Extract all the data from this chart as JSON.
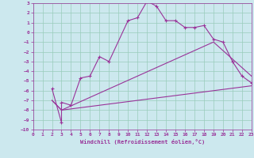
{
  "xlabel": "Windchill (Refroidissement éolien,°C)",
  "bg_color": "#cce8ee",
  "grid_color": "#99ccbb",
  "line_color": "#993399",
  "xmin": 0,
  "xmax": 23,
  "ymin": -10,
  "ymax": 3,
  "curve1_x": [
    2,
    3,
    3,
    4,
    5,
    6,
    7,
    8,
    10,
    11,
    12,
    13,
    14,
    15,
    16,
    17,
    18,
    19,
    20,
    21,
    22,
    23
  ],
  "curve1_y": [
    -5.8,
    -9.3,
    -7.2,
    -7.5,
    -4.7,
    -4.5,
    -2.5,
    -3.0,
    1.2,
    1.5,
    3.2,
    2.7,
    1.2,
    1.2,
    0.5,
    0.5,
    0.7,
    -0.7,
    -1.0,
    -3.0,
    -4.5,
    -5.2
  ],
  "curve2_x": [
    2,
    3,
    23
  ],
  "curve2_y": [
    -7.0,
    -8.0,
    -5.5
  ],
  "curve3_x": [
    2,
    3,
    19,
    23
  ],
  "curve3_y": [
    -7.0,
    -8.0,
    -1.0,
    -4.5
  ]
}
